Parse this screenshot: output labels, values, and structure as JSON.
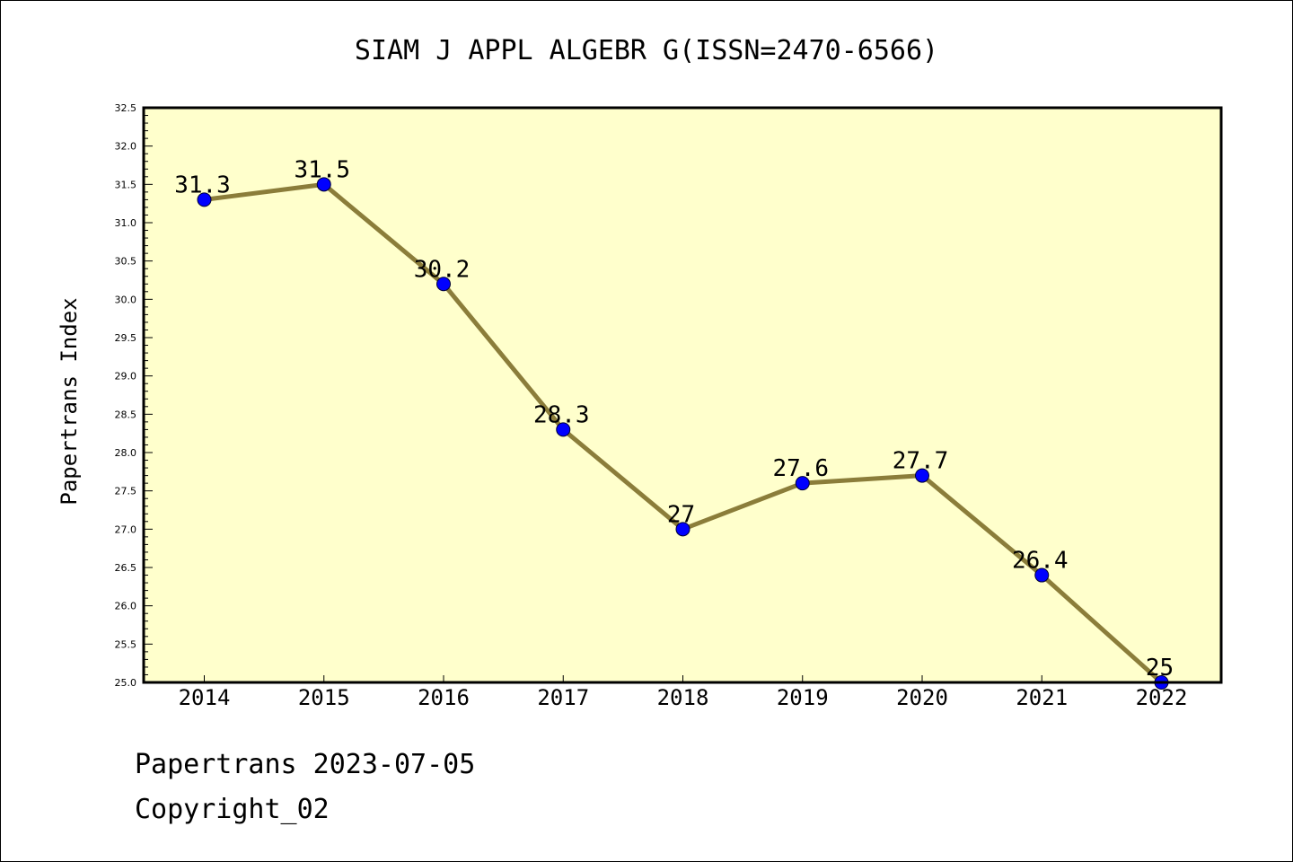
{
  "chart_data": {
    "type": "line",
    "title": "SIAM J APPL ALGEBR G(ISSN=2470-6566)",
    "ylabel": "Papertrans Index",
    "xlabel": "",
    "categories": [
      "2014",
      "2015",
      "2016",
      "2017",
      "2018",
      "2019",
      "2020",
      "2021",
      "2022"
    ],
    "series": [
      {
        "values": [
          31.3,
          31.5,
          30.2,
          28.3,
          27.0,
          27.6,
          27.7,
          26.4,
          25.0
        ],
        "labels": [
          "31.3",
          "31.5",
          "30.2",
          "28.3",
          "27",
          "27.6",
          "27.7",
          "26.4",
          "25"
        ]
      }
    ],
    "ylim": [
      25.0,
      32.5
    ],
    "ytick_step": 0.5,
    "grid": false,
    "legend": "none",
    "colors": {
      "plot_background": "#ffffcc",
      "line": "#8b7d3a",
      "marker": "#0000ff"
    }
  },
  "footer": {
    "source": "Papertrans 2023-07-05",
    "copyright": "Copyright_02"
  }
}
